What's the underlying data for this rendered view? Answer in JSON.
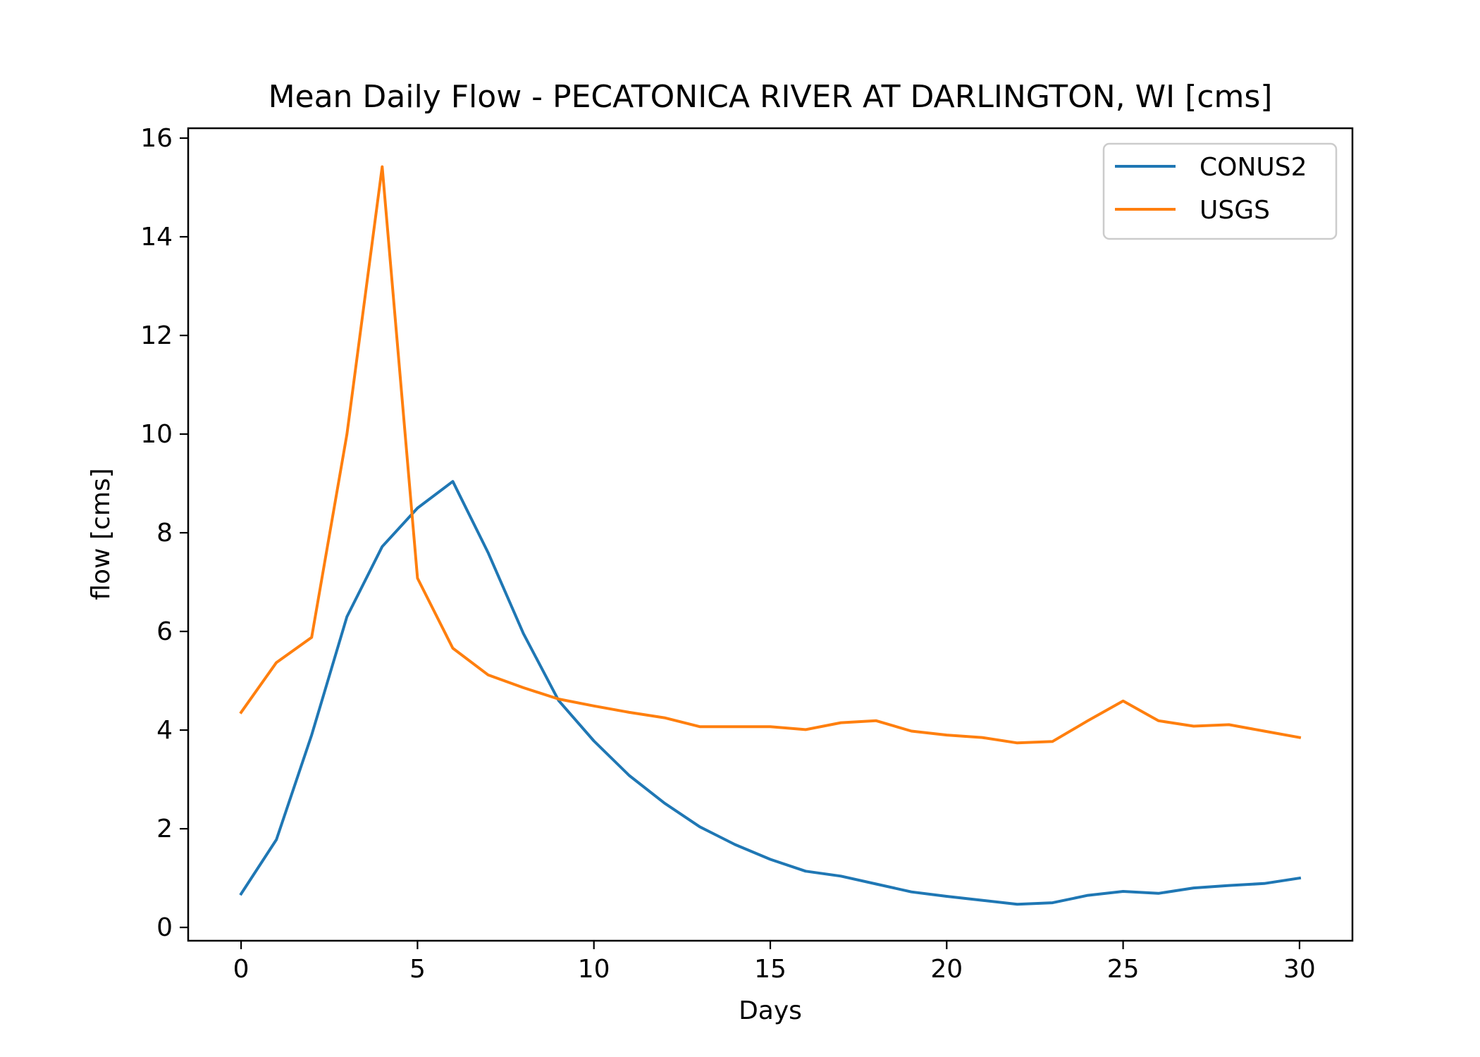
{
  "chart_data": {
    "type": "line",
    "title": "Mean Daily Flow - PECATONICA RIVER AT DARLINGTON, WI [cms]",
    "xlabel": "Days",
    "ylabel": "flow [cms]",
    "xlim": [
      -1.5,
      31.5
    ],
    "ylim": [
      -0.27,
      16.2
    ],
    "xticks": [
      0,
      5,
      10,
      15,
      20,
      25,
      30
    ],
    "yticks": [
      0,
      2,
      4,
      6,
      8,
      10,
      12,
      14,
      16
    ],
    "grid": false,
    "legend_position": "top-right",
    "x": [
      0,
      1,
      2,
      3,
      4,
      5,
      6,
      7,
      8,
      9,
      10,
      11,
      12,
      13,
      14,
      15,
      16,
      17,
      18,
      19,
      20,
      21,
      22,
      23,
      24,
      25,
      26,
      27,
      28,
      29,
      30
    ],
    "series": [
      {
        "name": "CONUS2",
        "color": "#1f77b4",
        "values": [
          0.68,
          1.78,
          3.9,
          6.3,
          7.72,
          8.5,
          9.04,
          7.6,
          5.96,
          4.6,
          3.78,
          3.08,
          2.52,
          2.04,
          1.68,
          1.38,
          1.14,
          1.04,
          0.88,
          0.72,
          0.63,
          0.55,
          0.47,
          0.5,
          0.65,
          0.73,
          0.69,
          0.8,
          0.85,
          0.89,
          1.0
        ]
      },
      {
        "name": "USGS",
        "color": "#ff7f0e",
        "values": [
          4.36,
          5.37,
          5.88,
          10.0,
          15.42,
          7.08,
          5.66,
          5.12,
          4.86,
          4.63,
          4.49,
          4.36,
          4.25,
          4.07,
          4.07,
          4.07,
          4.01,
          4.15,
          4.19,
          3.98,
          3.9,
          3.85,
          3.74,
          3.77,
          4.19,
          4.59,
          4.19,
          4.08,
          4.11,
          3.98,
          3.85
        ]
      }
    ]
  }
}
